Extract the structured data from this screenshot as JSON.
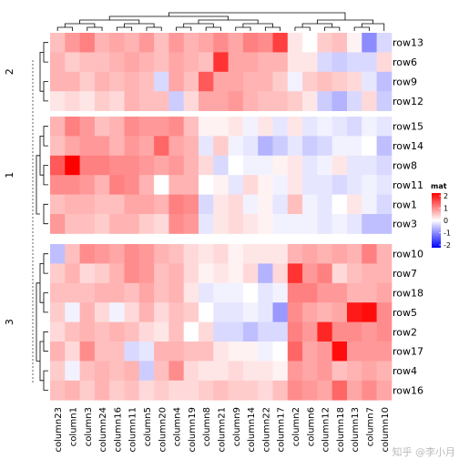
{
  "chart_data": {
    "type": "heatmap",
    "legend": {
      "title": "mat",
      "ticks": [
        "2",
        "1",
        "0",
        "-1",
        "-2"
      ],
      "colors": {
        "high": "#ff0000",
        "mid": "#ffffff",
        "low": "#0000ff"
      },
      "range": [
        -2,
        2
      ]
    },
    "columns": [
      "column23",
      "column1",
      "column3",
      "column24",
      "column16",
      "column11",
      "column5",
      "column20",
      "column4",
      "column19",
      "column8",
      "column21",
      "column9",
      "column14",
      "column22",
      "column17",
      "column2",
      "column6",
      "column12",
      "column18",
      "column13",
      "column7",
      "column10"
    ],
    "row_groups": [
      {
        "label": "2",
        "rows": [
          "row13",
          "row6",
          "row9",
          "row12"
        ]
      },
      {
        "label": "1",
        "rows": [
          "row15",
          "row14",
          "row8",
          "row11",
          "row1",
          "row3"
        ]
      },
      {
        "label": "3",
        "rows": [
          "row10",
          "row7",
          "row18",
          "row5",
          "row2",
          "row17",
          "row4",
          "row16"
        ]
      }
    ],
    "values": {
      "row13": [
        0.5,
        0.8,
        1.0,
        0.6,
        0.7,
        0.6,
        0.8,
        0.5,
        0.8,
        0.6,
        0.7,
        0.9,
        0.7,
        1.0,
        0.9,
        1.5,
        0.2,
        0.0,
        0.4,
        0.5,
        0.1,
        -0.9,
        -0.3
      ],
      "row6": [
        0.6,
        0.4,
        0.5,
        0.5,
        0.6,
        0.7,
        0.6,
        0.5,
        0.7,
        0.6,
        0.5,
        1.6,
        0.7,
        0.7,
        0.6,
        0.6,
        0.2,
        0.2,
        -0.3,
        -0.4,
        -0.3,
        -0.3,
        0.3
      ],
      "row9": [
        0.6,
        0.6,
        0.4,
        0.6,
        0.5,
        0.6,
        0.5,
        -0.3,
        0.7,
        0.5,
        1.3,
        0.7,
        0.7,
        0.6,
        0.6,
        0.4,
        -0.1,
        0.4,
        0.5,
        0.4,
        0.3,
        -0.2,
        -0.5
      ],
      "row12": [
        0.2,
        0.3,
        0.2,
        0.4,
        0.3,
        0.6,
        0.5,
        0.5,
        -0.4,
        0.3,
        0.7,
        0.7,
        0.8,
        0.6,
        0.5,
        0.5,
        0.4,
        0.2,
        -0.4,
        -0.6,
        -0.3,
        0.3,
        -0.4
      ],
      "row15": [
        0.6,
        1.0,
        0.8,
        0.5,
        0.6,
        0.9,
        0.8,
        0.8,
        0.9,
        0.5,
        0.1,
        0.1,
        0.2,
        -0.1,
        0.2,
        -0.2,
        0.2,
        -0.2,
        -0.1,
        -0.2,
        -0.3,
        -0.1,
        -0.2
      ],
      "row14": [
        0.5,
        0.7,
        0.8,
        0.8,
        0.6,
        0.8,
        0.7,
        1.2,
        0.7,
        0.6,
        -0.2,
        0.4,
        -0.1,
        -0.2,
        -0.6,
        -0.4,
        -0.2,
        -0.4,
        -0.3,
        -0.1,
        -0.1,
        0.0,
        -0.5
      ],
      "row8": [
        1.3,
        2.0,
        1.0,
        1.0,
        0.9,
        0.9,
        0.8,
        0.7,
        0.8,
        0.6,
        0.3,
        -0.3,
        0.0,
        -0.1,
        -0.1,
        0.1,
        0.2,
        -0.2,
        -0.1,
        0.2,
        -0.2,
        -0.2,
        -0.3
      ],
      "row11": [
        0.9,
        0.9,
        0.8,
        0.6,
        1.0,
        0.9,
        0.6,
        0.0,
        0.6,
        0.6,
        0.0,
        0.1,
        -0.2,
        0.3,
        0.1,
        -0.1,
        0.2,
        -0.2,
        -0.2,
        -0.3,
        -0.2,
        -0.1,
        -0.2
      ],
      "row1": [
        0.5,
        0.6,
        0.6,
        0.5,
        0.5,
        0.7,
        0.7,
        0.6,
        1.0,
        0.9,
        -0.3,
        0.2,
        0.3,
        -0.1,
        0.1,
        -0.2,
        0.5,
        -0.1,
        -0.2,
        0.0,
        0.2,
        -0.1,
        -0.3
      ],
      "row3": [
        0.8,
        0.5,
        0.5,
        0.4,
        0.6,
        0.6,
        0.4,
        0.3,
        0.9,
        0.8,
        -0.2,
        0.2,
        0.3,
        0.2,
        0.1,
        -0.1,
        -0.1,
        -0.1,
        -0.2,
        -0.1,
        -0.2,
        -0.5,
        -0.5
      ],
      "row10": [
        -0.5,
        0.5,
        0.9,
        0.8,
        0.7,
        0.9,
        0.8,
        0.6,
        0.5,
        0.3,
        0.2,
        0.3,
        0.1,
        0.2,
        0.2,
        0.2,
        0.6,
        0.7,
        0.6,
        0.7,
        0.6,
        1.0,
        0.6
      ],
      "row7": [
        0.4,
        0.6,
        0.3,
        0.4,
        0.6,
        0.9,
        0.8,
        0.5,
        0.6,
        0.3,
        0.1,
        0.2,
        0.1,
        0.3,
        -0.6,
        0.3,
        1.6,
        0.8,
        1.0,
        0.3,
        0.5,
        0.6,
        0.6
      ],
      "row18": [
        0.5,
        0.5,
        0.5,
        0.6,
        0.6,
        0.5,
        0.7,
        0.5,
        0.6,
        0.2,
        -0.2,
        -0.1,
        -0.1,
        0.0,
        -0.2,
        -0.1,
        1.0,
        1.0,
        0.8,
        0.8,
        0.6,
        0.6,
        0.7
      ],
      "row5": [
        0.4,
        -0.1,
        0.6,
        0.3,
        -0.1,
        0.3,
        0.6,
        0.3,
        0.5,
        0.4,
        0.0,
        -0.2,
        -0.2,
        -0.1,
        -0.2,
        -0.8,
        0.9,
        0.7,
        0.6,
        0.7,
        1.8,
        1.9,
        0.9
      ],
      "row2": [
        0.3,
        0.5,
        0.6,
        0.5,
        0.6,
        0.5,
        0.3,
        0.2,
        0.5,
        0.0,
        0.3,
        -0.3,
        -0.3,
        -0.5,
        -0.3,
        -0.3,
        1.0,
        0.8,
        1.7,
        0.9,
        0.9,
        0.8,
        0.9
      ],
      "row17": [
        0.6,
        0.3,
        0.9,
        0.5,
        0.5,
        -0.3,
        -0.2,
        0.6,
        0.6,
        0.5,
        0.5,
        0.2,
        0.1,
        0.1,
        -0.1,
        0.0,
        1.2,
        0.7,
        0.8,
        1.9,
        0.8,
        0.8,
        0.8
      ],
      "row4": [
        0.4,
        -0.1,
        0.5,
        0.6,
        0.5,
        0.6,
        -0.4,
        0.5,
        0.9,
        0.3,
        0.2,
        0.2,
        0.3,
        0.2,
        0.2,
        0.1,
        0.8,
        0.7,
        0.8,
        0.5,
        0.6,
        0.7,
        0.6
      ],
      "row16": [
        0.5,
        0.6,
        0.4,
        0.6,
        0.4,
        0.5,
        0.3,
        0.4,
        0.3,
        0.3,
        0.4,
        0.5,
        0.4,
        0.4,
        0.3,
        0.5,
        0.9,
        0.8,
        0.7,
        1.2,
        0.7,
        0.9,
        0.7
      ]
    }
  },
  "watermark": "知乎 @李小月"
}
